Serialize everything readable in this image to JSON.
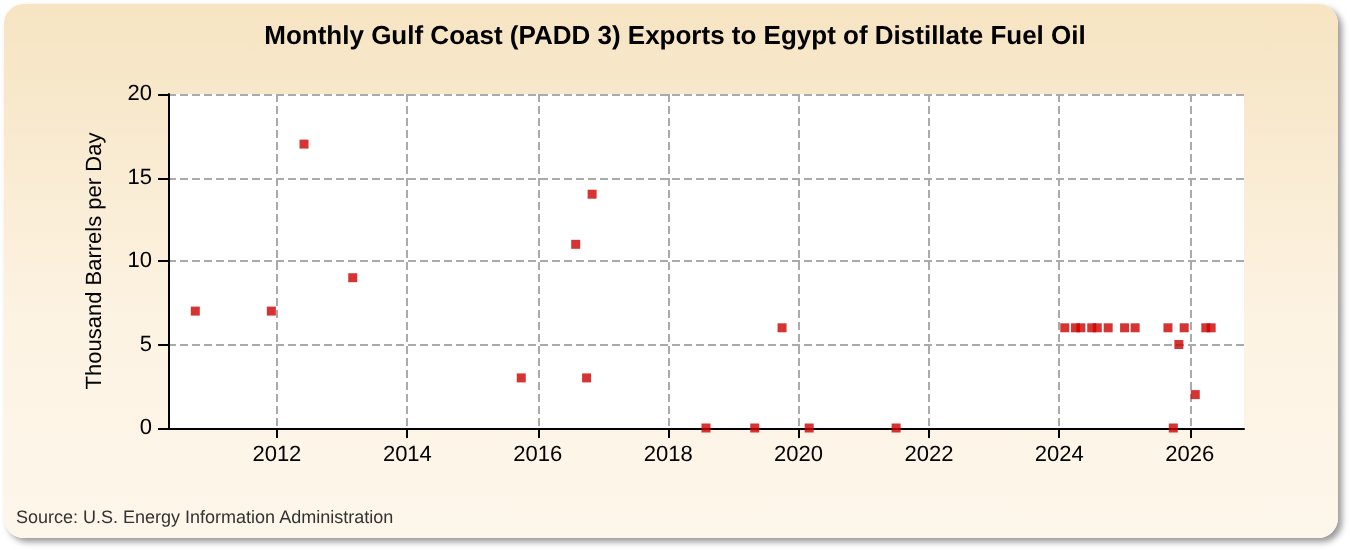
{
  "chart_data": {
    "type": "scatter",
    "title": "Monthly Gulf Coast (PADD 3) Exports to Egypt of Distillate Fuel Oil",
    "ylabel": "Thousand Barrels per Day",
    "x": [
      "2010-10",
      "2011-12",
      "2012-06",
      "2013-03",
      "2015-10",
      "2016-08",
      "2016-10",
      "2016-11",
      "2018-08",
      "2019-05",
      "2019-10",
      "2020-03",
      "2021-07",
      "2024-02",
      "2024-04",
      "2024-05",
      "2024-07",
      "2024-08",
      "2024-10",
      "2025-01",
      "2025-03",
      "2025-09",
      "2025-10",
      "2025-11",
      "2025-12",
      "2026-02",
      "2026-04",
      "2026-05"
    ],
    "series": [
      {
        "color": "#cc0000",
        "values": [
          7,
          7,
          17,
          9,
          3,
          11,
          3,
          14,
          0,
          0,
          6,
          0,
          0,
          6,
          6,
          6,
          6,
          6,
          6,
          6,
          6,
          6,
          0,
          5,
          6,
          2,
          6,
          6
        ]
      }
    ],
    "xlim": [
      "2010-05",
      "2026-11"
    ],
    "xticks": [
      "2012",
      "2014",
      "2016",
      "2018",
      "2020",
      "2022",
      "2024",
      "2026"
    ],
    "ylim": [
      0,
      20
    ],
    "yticks": [
      0,
      5,
      10,
      15,
      20
    ],
    "grid": true,
    "marker": "square",
    "annotations": [
      "Source: U.S. Energy Information Administration"
    ]
  }
}
